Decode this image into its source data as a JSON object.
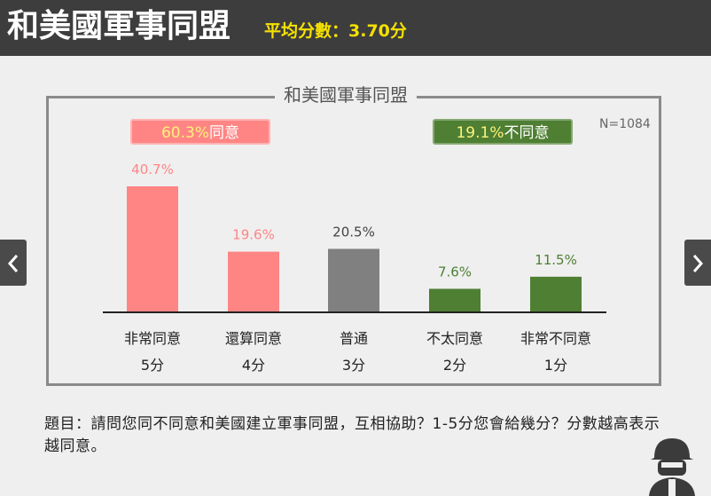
{
  "header": {
    "title": "和美國軍事同盟",
    "subtitle": "平均分數：3.70分"
  },
  "summary": {
    "agree_pct": "60.3%",
    "agree_label": "同意",
    "disagree_pct": "19.1%",
    "disagree_label": "不同意",
    "sample_size": "N=1084"
  },
  "question": "題目：請問您同不同意和美國建立軍事同盟，互相協助？1-5分您會給幾分？分數越高表示越同意。",
  "nav": {
    "prev_icon": "chevron-left-icon",
    "next_icon": "chevron-right-icon"
  },
  "colors": {
    "agree": "#ff8585",
    "neutral": "#808080",
    "disagree": "#4e7f33",
    "header_bg": "#3d3d3d",
    "header_accent": "#f5e100"
  },
  "chart_data": {
    "type": "bar",
    "title": "和美國軍事同盟",
    "categories": [
      "非常同意",
      "還算同意",
      "普通",
      "不太同意",
      "非常不同意"
    ],
    "scores": [
      "5分",
      "4分",
      "3分",
      "2分",
      "1分"
    ],
    "values": [
      40.7,
      19.6,
      20.5,
      7.6,
      11.5
    ],
    "value_labels": [
      "40.7%",
      "19.6%",
      "20.5%",
      "7.6%",
      "11.5%"
    ],
    "groups": [
      "agree",
      "agree",
      "neutral",
      "disagree",
      "disagree"
    ],
    "ylim": [
      0,
      40.7
    ],
    "grid": false,
    "legend": "none"
  }
}
